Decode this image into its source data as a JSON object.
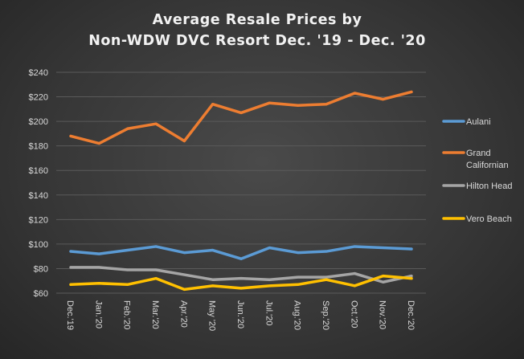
{
  "chart_data": {
    "type": "line",
    "title_lines": [
      "Average Resale Prices by",
      "Non-WDW  DVC Resort Dec. '19 - Dec. '20"
    ],
    "xlabel": "",
    "ylabel": "",
    "ylim": [
      60,
      240
    ],
    "yticks": [
      60,
      80,
      100,
      120,
      140,
      160,
      180,
      200,
      220,
      240
    ],
    "ytick_labels": [
      "$60",
      "$80",
      "$100",
      "$120",
      "$140",
      "$160",
      "$180",
      "$200",
      "$220",
      "$240"
    ],
    "grid": true,
    "legend_position": "right",
    "categories": [
      "Dec.'19",
      "Jan.'20",
      "Feb.'20",
      "Mar.'20",
      "Apr.'20",
      "May '20",
      "Jun.'20",
      "Jul.'20",
      "Aug.'20",
      "Sep.'20",
      "Oct.'20",
      "Nov.'20",
      "Dec.'20"
    ],
    "series": [
      {
        "name": "Aulani",
        "color": "#5b9bd5",
        "values": [
          94,
          92,
          95,
          98,
          93,
          95,
          88,
          97,
          93,
          94,
          98,
          97,
          96
        ]
      },
      {
        "name": "Grand Californian",
        "legend_lines": [
          "Grand",
          "Californian"
        ],
        "color": "#ed7d31",
        "values": [
          188,
          182,
          194,
          198,
          184,
          214,
          207,
          215,
          213,
          214,
          223,
          218,
          224
        ]
      },
      {
        "name": "Hilton Head",
        "color": "#a5a5a5",
        "values": [
          81,
          81,
          79,
          79,
          75,
          71,
          72,
          71,
          73,
          73,
          76,
          69,
          74
        ]
      },
      {
        "name": "Vero Beach",
        "color": "#ffc000",
        "values": [
          67,
          68,
          67,
          72,
          63,
          66,
          64,
          66,
          67,
          71,
          66,
          74,
          72
        ]
      }
    ]
  }
}
